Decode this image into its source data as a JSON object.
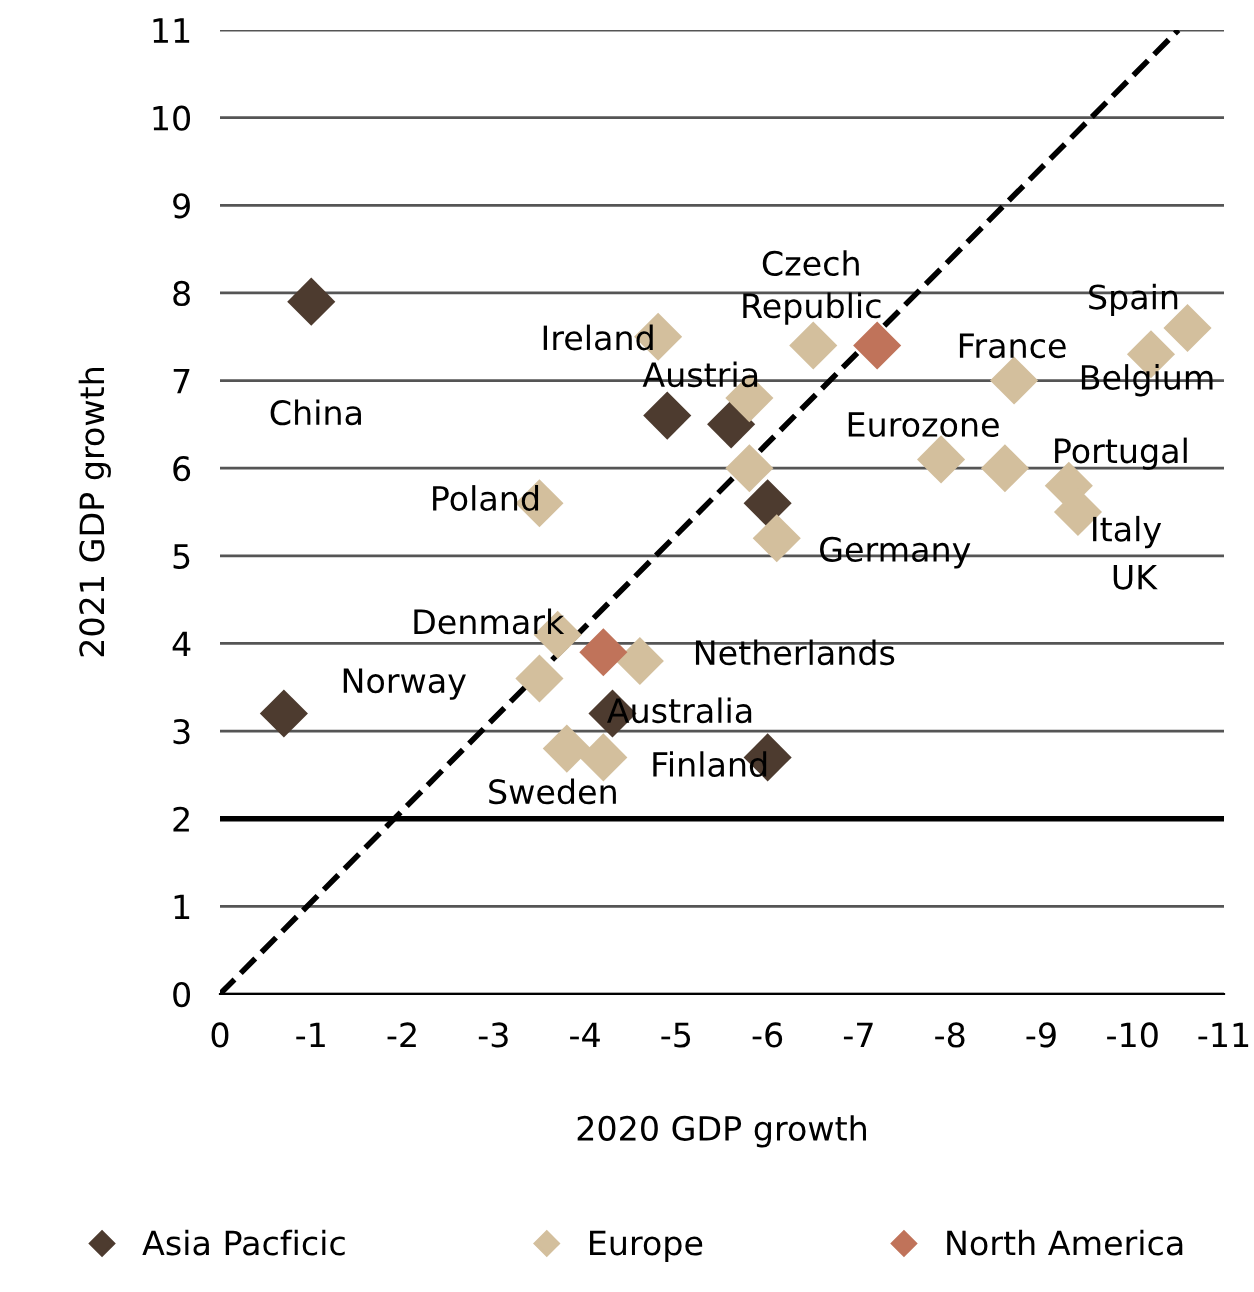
{
  "chart_data": {
    "type": "scatter",
    "xlabel": "2020 GDP growth",
    "ylabel": "2021 GDP growth",
    "xlim": [
      0,
      -11
    ],
    "ylim": [
      0,
      11
    ],
    "xticks": [
      0,
      -1,
      -2,
      -3,
      -4,
      -5,
      -6,
      -7,
      -8,
      -9,
      -10,
      -11
    ],
    "yticks": [
      0,
      1,
      2,
      3,
      4,
      5,
      6,
      7,
      8,
      9,
      10,
      11
    ],
    "grid": "y",
    "legend": "bottom",
    "marker": "diamond",
    "series": [
      {
        "name": "Asia Pacficic",
        "color": "#4d3b2f",
        "x": [
          -1.0,
          -0.7,
          -4.9,
          -5.6,
          -6.0,
          -4.3,
          -6.0
        ],
        "values": [
          7.9,
          3.2,
          6.6,
          6.5,
          5.6,
          3.2,
          2.7
        ]
      },
      {
        "name": "Europe",
        "color": "#d3bf9d",
        "x": [
          -4.8,
          -6.5,
          -10.6,
          -10.2,
          -8.7,
          -5.8,
          -5.8,
          -6.1,
          -3.5,
          -7.9,
          -8.6,
          -9.3,
          -9.4,
          -3.7,
          -3.5,
          -4.6,
          -3.8,
          -4.2
        ],
        "values": [
          7.5,
          7.4,
          7.6,
          7.3,
          7.0,
          6.8,
          6.0,
          5.2,
          5.6,
          6.1,
          6.0,
          5.8,
          5.5,
          4.1,
          3.6,
          3.8,
          2.8,
          2.7
        ]
      },
      {
        "name": "North America",
        "color": "#c0735a",
        "x": [
          -7.2,
          -4.2
        ],
        "values": [
          7.4,
          3.9
        ]
      },
      {
        "type": "line",
        "color": "#000000",
        "line_style": "dashed",
        "marker": "none",
        "x": [
          0,
          -10.5
        ],
        "values": [
          0,
          11
        ]
      }
    ],
    "ref_lines": [
      {
        "axis": "y",
        "value": 2,
        "color": "#000000"
      }
    ],
    "annotations": [
      "China",
      "Norway",
      {
        "text": "Ireland",
        "x": -4.8,
        "y": 7.5
      },
      {
        "text": "Czech\nRepublic",
        "x": -6.5,
        "y": 7.4
      },
      {
        "text": "Spain",
        "x": -10.6,
        "y": 7.6
      },
      {
        "text": "Belgium",
        "x": -10.2,
        "y": 7.3
      },
      {
        "text": "France",
        "x": -8.7,
        "y": 7.0
      },
      {
        "text": "Austria",
        "x": -4.9,
        "y": 6.6
      },
      {
        "text": "Eurozone",
        "x": -7.9,
        "y": 6.1
      },
      {
        "text": "Portugal",
        "x": -9.3,
        "y": 5.8
      },
      {
        "text": "Italy",
        "x": -9.4,
        "y": 5.5
      },
      {
        "text": "UK",
        "x": -9.4,
        "y": 5.5
      },
      {
        "text": "Poland",
        "x": -3.5,
        "y": 5.6
      },
      {
        "text": "Germany",
        "x": -6.1,
        "y": 5.2
      },
      {
        "text": "Denmark",
        "x": -3.7,
        "y": 4.1
      },
      "Netherlands",
      {
        "text": "Australia",
        "x": -4.3,
        "y": 3.2
      },
      {
        "text": "Finland",
        "x": -6.0,
        "y": 2.7
      },
      {
        "text": "Sweden",
        "x": -3.8,
        "y": 2.8
      }
    ]
  }
}
